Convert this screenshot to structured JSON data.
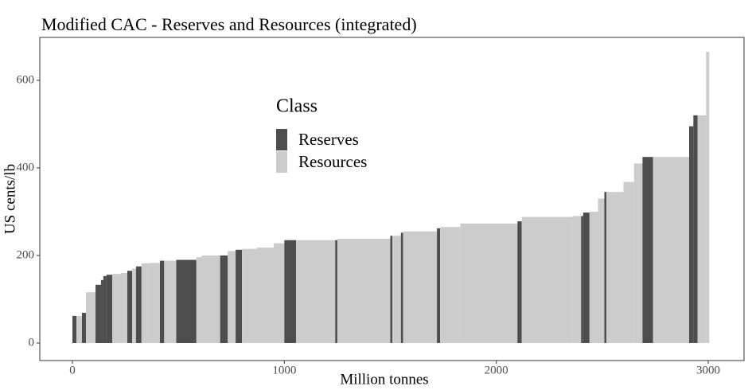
{
  "chart_data": {
    "type": "cost-curve",
    "title": "Modified CAC - Reserves and Resources (integrated)",
    "x_label": "Million tonnes",
    "y_label": "US cents/lb",
    "legend_title": "Class",
    "series": [
      {
        "name": "Reserves",
        "color": "#4d4d4d"
      },
      {
        "name": "Resources",
        "color": "#cccccc"
      }
    ],
    "x_start": [
      0,
      19,
      45,
      64,
      109,
      135,
      146,
      161,
      188,
      229,
      259,
      282,
      300,
      326,
      360,
      413,
      433,
      490,
      585,
      610,
      697,
      733,
      770,
      800,
      870,
      950,
      1000,
      1055,
      1240,
      1250,
      1500,
      1510,
      1550,
      1560,
      1720,
      1735,
      1830,
      2100,
      2120,
      2360,
      2400,
      2410,
      2440,
      2480,
      2510,
      2520,
      2600,
      2650,
      2690,
      2740,
      2910,
      2930,
      2950,
      2990
    ],
    "x_end": [
      19,
      45,
      64,
      109,
      135,
      146,
      161,
      188,
      229,
      259,
      282,
      300,
      326,
      360,
      413,
      433,
      490,
      585,
      610,
      697,
      733,
      770,
      800,
      870,
      950,
      1000,
      1055,
      1240,
      1250,
      1500,
      1510,
      1550,
      1560,
      1720,
      1735,
      1830,
      2100,
      2120,
      2360,
      2400,
      2410,
      2440,
      2480,
      2510,
      2520,
      2600,
      2650,
      2690,
      2740,
      2910,
      2930,
      2950,
      2990,
      3005
    ],
    "values": [
      62,
      62,
      69,
      116,
      133,
      144,
      153,
      156,
      158,
      160,
      165,
      170,
      175,
      182,
      183,
      188,
      188,
      190,
      196,
      200,
      200,
      210,
      213,
      215,
      218,
      228,
      235,
      235,
      235,
      238,
      245,
      245,
      252,
      255,
      262,
      265,
      273,
      278,
      288,
      290,
      290,
      298,
      300,
      330,
      345,
      345,
      368,
      410,
      425,
      425,
      495,
      520,
      520,
      665
    ],
    "class": [
      0,
      1,
      0,
      1,
      0,
      0,
      0,
      0,
      1,
      1,
      0,
      1,
      0,
      1,
      1,
      0,
      1,
      0,
      1,
      1,
      0,
      1,
      0,
      1,
      1,
      1,
      0,
      1,
      0,
      1,
      0,
      1,
      0,
      1,
      0,
      1,
      1,
      0,
      1,
      1,
      0,
      0,
      1,
      1,
      0,
      1,
      1,
      1,
      0,
      1,
      0,
      0,
      1,
      1
    ],
    "xlim": [
      -154,
      3169
    ],
    "ylim": [
      -40,
      698
    ],
    "xticks": [
      0,
      1000,
      2000,
      3000
    ],
    "yticks": [
      0,
      200,
      400,
      600
    ],
    "grid": false
  }
}
